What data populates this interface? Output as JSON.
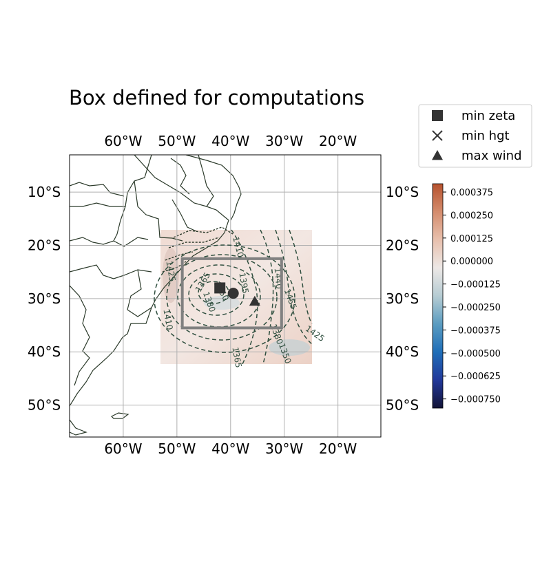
{
  "chart_data": {
    "type": "map",
    "title": "Box defined for computations",
    "map": {
      "lon_range": [
        -70,
        -12
      ],
      "lat_range": [
        -56,
        -3
      ],
      "lon_ticks": [
        -60,
        -50,
        -40,
        -30,
        -20
      ],
      "lon_tick_labels": [
        "60°W",
        "50°W",
        "40°W",
        "30°W",
        "20°W"
      ],
      "lat_ticks": [
        -10,
        -20,
        -30,
        -40,
        -50
      ],
      "lat_tick_labels": [
        "10°S",
        "20°S",
        "30°S",
        "40°S",
        "50°S"
      ],
      "grid": true
    },
    "field_extent": {
      "lon": [
        -52,
        -23.5
      ],
      "lat": [
        -42,
        -17
      ]
    },
    "computation_box": {
      "lon": [
        -49,
        -30.5
      ],
      "lat": [
        -35.5,
        -22.5
      ]
    },
    "contours": {
      "style": "dashed",
      "color": "#2f4f3f",
      "labels": [
        "1365",
        "1380",
        "1395",
        "1410",
        "1425",
        "1440",
        "1455",
        "1350",
        "1365",
        "1410",
        "1380",
        "1350",
        "1425"
      ]
    },
    "markers": [
      {
        "name": "min zeta",
        "shape": "square",
        "lon": -42,
        "lat": -28
      },
      {
        "name": "min hgt",
        "shape": "x",
        "lon": -42,
        "lat": -28
      },
      {
        "name": "max wind",
        "shape": "triangle",
        "lon": -35.5,
        "lat": -30.5
      },
      {
        "name": "",
        "shape": "circle",
        "lon": -39.5,
        "lat": -29
      }
    ],
    "legend": {
      "position": "top-right",
      "entries": [
        {
          "label": "min zeta",
          "marker": "square"
        },
        {
          "label": "min hgt",
          "marker": "x"
        },
        {
          "label": "max wind",
          "marker": "triangle"
        }
      ]
    },
    "colorbar": {
      "range": [
        -0.0008,
        0.00042
      ],
      "ticks": [
        0.000375,
        0.00025,
        0.000125,
        0.0,
        -0.000125,
        -0.00025,
        -0.000375,
        -0.0005,
        -0.000625,
        -0.00075
      ],
      "tick_labels": [
        "0.000375",
        "0.000250",
        "0.000125",
        "0.000000",
        "−0.000125",
        "−0.000250",
        "−0.000375",
        "−0.000500",
        "−0.000625",
        "−0.000750"
      ],
      "colors": [
        "#131336",
        "#21389a",
        "#1f6eb8",
        "#5b9cc0",
        "#b6ccd3",
        "#ede8e6",
        "#e8c0ad",
        "#d48c6d",
        "#b6522e"
      ]
    }
  }
}
